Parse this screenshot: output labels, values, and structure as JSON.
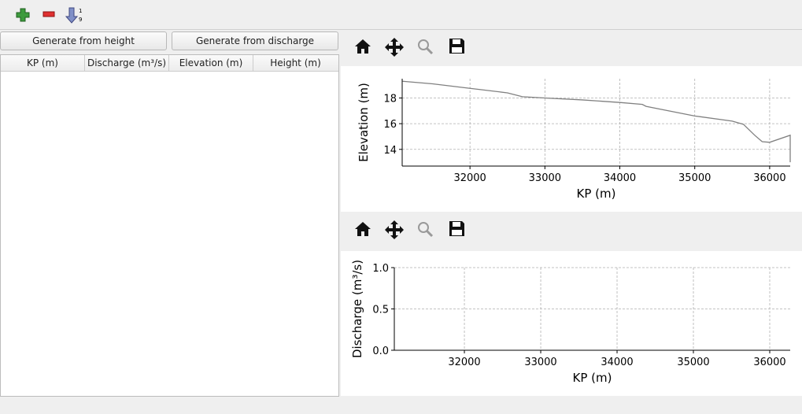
{
  "buttons": [
    "Generate from height",
    "Generate from discharge"
  ],
  "table": {
    "headers": [
      "KP (m)",
      "Discharge (m³/s)",
      "Elevation (m)",
      "Height (m)"
    ]
  },
  "chart_data": [
    {
      "type": "line",
      "x_label": "KP (m)",
      "y_label": "Elevation (m)",
      "x": [
        31100,
        31500,
        32000,
        32500,
        32700,
        33000,
        33500,
        34000,
        34300,
        34350,
        35000,
        35500,
        35650,
        35800,
        35900,
        36000,
        36274,
        36274
      ],
      "values": [
        19.3,
        19.1,
        18.75,
        18.4,
        18.1,
        18.0,
        17.85,
        17.65,
        17.5,
        17.35,
        16.6,
        16.2,
        15.95,
        15.1,
        14.6,
        14.55,
        15.1,
        13.0
      ],
      "color": "#808080",
      "xlim": [
        31095,
        36274
      ],
      "ylim": [
        12.7,
        19.5
      ],
      "xticks": [
        32000,
        33000,
        34000,
        35000,
        36000
      ],
      "yticks": [
        14,
        16,
        18
      ],
      "grid": true
    },
    {
      "type": "line",
      "x_label": "KP (m)",
      "y_label": "Discharge (m³/s)",
      "xlim": [
        31082,
        36268
      ],
      "ylim": [
        0,
        1
      ],
      "xticks": [
        32000,
        33000,
        34000,
        35000,
        36000
      ],
      "yticks": [
        {
          "value": 0,
          "label": "0.0"
        },
        {
          "value": 0.5,
          "label": "0.5"
        },
        {
          "value": 1,
          "label": "1.0"
        }
      ],
      "grid": true
    }
  ]
}
